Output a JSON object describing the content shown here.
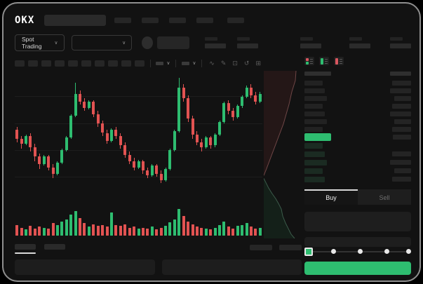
{
  "brand": {
    "logo_text": "OKX"
  },
  "market_bar": {
    "market_type_label": "Spot Trading"
  },
  "icons": {
    "chevron_down": "∨",
    "wave": "∿",
    "pencil": "✎",
    "camera": "⊡",
    "history": "↺",
    "expand": "⊞"
  },
  "colors": {
    "up_green": "#2ebd70",
    "down_red": "#e25352",
    "last_price_bg": "#2ebd70",
    "buy_button_green": "#2ebd70",
    "book_icon_red": "#d9565f",
    "book_icon_green": "#2ebd70"
  },
  "order_book": {
    "asks_rows": 7,
    "bids_rows": 5,
    "tabs": {
      "buy": "Buy",
      "sell": "Sell"
    }
  },
  "trade_form": {
    "slider_stops": 5,
    "slider_value_index": 0
  },
  "chart_data": [
    {
      "type": "candlestick",
      "title": "",
      "xlabel": "",
      "ylabel": "",
      "note": "price axis unlabeled in UI; OHLC in relative units 0-100",
      "ylim": [
        0,
        100
      ],
      "candles": [
        [
          66,
          68,
          58,
          60,
          12
        ],
        [
          60,
          62,
          54,
          57,
          9
        ],
        [
          57,
          63,
          56,
          62,
          7
        ],
        [
          62,
          64,
          52,
          55,
          11
        ],
        [
          55,
          57,
          46,
          49,
          8
        ],
        [
          49,
          51,
          41,
          44,
          10
        ],
        [
          44,
          50,
          43,
          49,
          9
        ],
        [
          49,
          50,
          40,
          42,
          8
        ],
        [
          42,
          44,
          35,
          38,
          14
        ],
        [
          38,
          46,
          37,
          45,
          12
        ],
        [
          45,
          54,
          44,
          53,
          16
        ],
        [
          53,
          62,
          52,
          61,
          18
        ],
        [
          61,
          76,
          60,
          75,
          24
        ],
        [
          75,
          96,
          74,
          89,
          28
        ],
        [
          89,
          91,
          82,
          84,
          20
        ],
        [
          84,
          86,
          78,
          80,
          14
        ],
        [
          80,
          85,
          79,
          84,
          10
        ],
        [
          84,
          85,
          74,
          76,
          13
        ],
        [
          76,
          78,
          68,
          70,
          11
        ],
        [
          70,
          72,
          62,
          64,
          12
        ],
        [
          64,
          66,
          57,
          59,
          10
        ],
        [
          59,
          67,
          58,
          66,
          26
        ],
        [
          66,
          68,
          60,
          62,
          12
        ],
        [
          62,
          64,
          54,
          56,
          11
        ],
        [
          56,
          58,
          48,
          50,
          13
        ],
        [
          50,
          52,
          44,
          46,
          9
        ],
        [
          46,
          48,
          40,
          42,
          10
        ],
        [
          42,
          47,
          41,
          46,
          8
        ],
        [
          46,
          47,
          38,
          40,
          9
        ],
        [
          40,
          42,
          35,
          37,
          8
        ],
        [
          37,
          44,
          36,
          43,
          10
        ],
        [
          43,
          44,
          36,
          38,
          7
        ],
        [
          38,
          40,
          32,
          34,
          9
        ],
        [
          34,
          42,
          33,
          41,
          11
        ],
        [
          41,
          54,
          40,
          53,
          15
        ],
        [
          53,
          66,
          52,
          65,
          18
        ],
        [
          65,
          99,
          64,
          93,
          30
        ],
        [
          93,
          95,
          84,
          86,
          22
        ],
        [
          86,
          88,
          71,
          73,
          16
        ],
        [
          73,
          75,
          60,
          63,
          13
        ],
        [
          63,
          65,
          56,
          58,
          10
        ],
        [
          58,
          60,
          52,
          55,
          9
        ],
        [
          55,
          62,
          54,
          61,
          8
        ],
        [
          61,
          62,
          54,
          56,
          7
        ],
        [
          56,
          64,
          55,
          63,
          9
        ],
        [
          63,
          72,
          62,
          71,
          12
        ],
        [
          71,
          84,
          70,
          83,
          16
        ],
        [
          83,
          85,
          76,
          78,
          10
        ],
        [
          78,
          80,
          72,
          74,
          8
        ],
        [
          74,
          82,
          73,
          81,
          11
        ],
        [
          81,
          88,
          80,
          87,
          12
        ],
        [
          87,
          94,
          86,
          93,
          14
        ],
        [
          93,
          95,
          86,
          88,
          10
        ],
        [
          88,
          90,
          82,
          84,
          8
        ],
        [
          84,
          90,
          83,
          89,
          9
        ]
      ]
    },
    {
      "type": "area",
      "name": "order-book-depth",
      "orientation": "vertical",
      "ask_curve": [
        [
          46,
          0
        ],
        [
          45,
          14
        ],
        [
          40,
          30
        ],
        [
          36,
          48
        ],
        [
          32,
          62
        ],
        [
          28,
          76
        ],
        [
          22,
          92
        ],
        [
          16,
          108
        ],
        [
          10,
          124
        ],
        [
          4,
          140
        ],
        [
          0,
          150
        ]
      ],
      "bid_curve": [
        [
          0,
          154
        ],
        [
          3,
          160
        ],
        [
          7,
          168
        ],
        [
          12,
          176
        ],
        [
          17,
          183
        ],
        [
          21,
          190
        ],
        [
          25,
          198
        ],
        [
          27,
          208
        ],
        [
          31,
          218
        ],
        [
          35,
          226
        ],
        [
          39,
          234
        ],
        [
          44,
          240
        ]
      ]
    }
  ]
}
